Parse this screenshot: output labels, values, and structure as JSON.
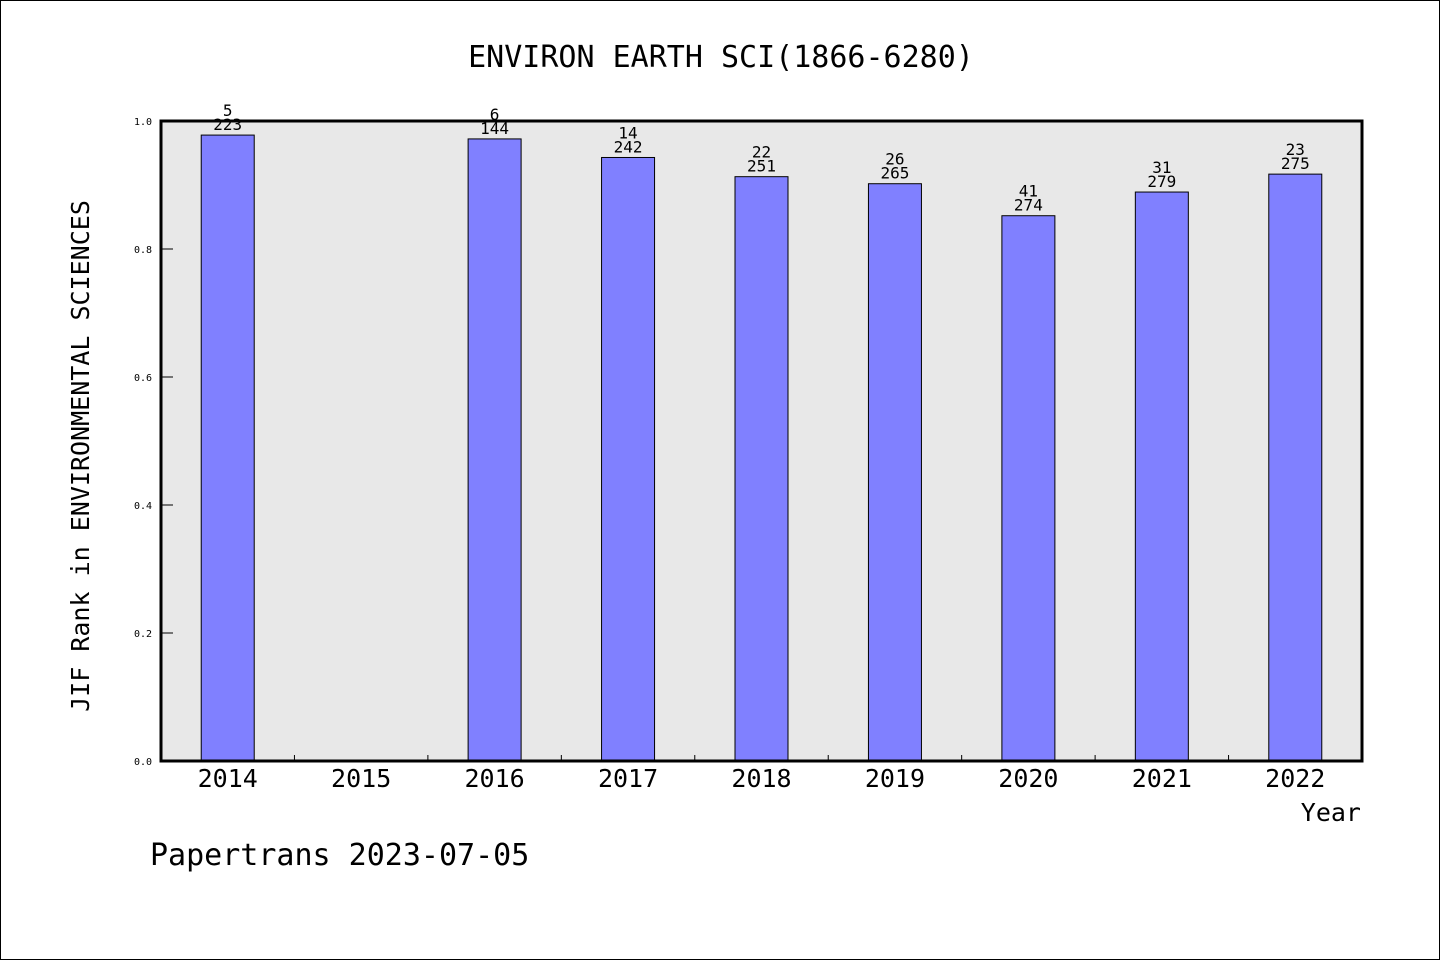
{
  "chart_data": {
    "type": "bar",
    "title": "ENVIRON EARTH SCI(1866-6280)",
    "xlabel": "Year",
    "ylabel": "JIF Rank in ENVIRONMENTAL SCIENCES",
    "ylim": [
      0,
      1.0
    ],
    "yticks": [
      "0.0",
      "0.2",
      "0.4",
      "0.6",
      "0.8",
      "1.0"
    ],
    "ytick_values": [
      0.0,
      0.2,
      0.4,
      0.6,
      0.8,
      1.0
    ],
    "categories": [
      "2014",
      "2015",
      "2016",
      "2017",
      "2018",
      "2019",
      "2020",
      "2021",
      "2022"
    ],
    "values": [
      0.978,
      null,
      0.972,
      0.943,
      0.913,
      0.902,
      0.852,
      0.889,
      0.917
    ],
    "rank": [
      "5",
      "",
      "6",
      "14",
      "22",
      "26",
      "41",
      "31",
      "23"
    ],
    "total": [
      "223",
      "",
      "144",
      "242",
      "251",
      "265",
      "274",
      "279",
      "275"
    ],
    "bar_color": "#8080ff",
    "plot_background": "#e8e8e8",
    "grid": false,
    "legend": "none"
  },
  "footer": "Papertrans 2023-07-05"
}
